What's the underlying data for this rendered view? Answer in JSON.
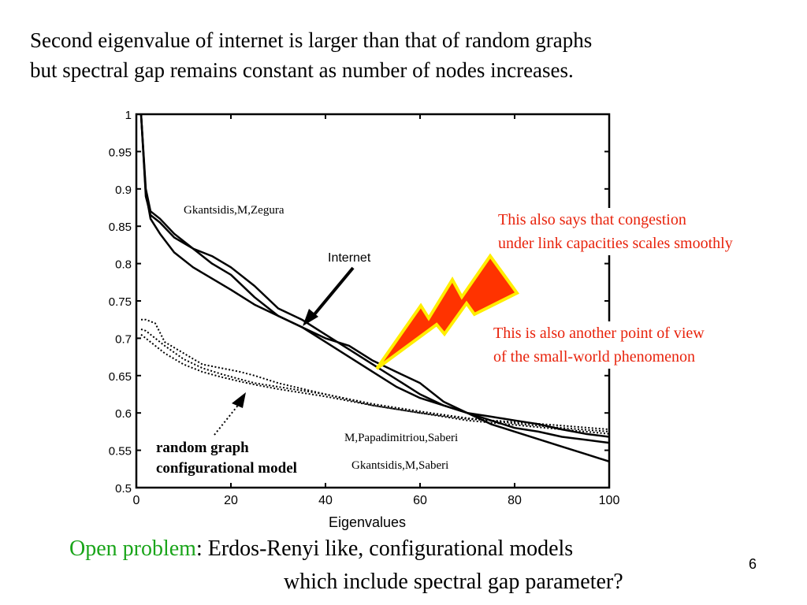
{
  "slide": {
    "title_line1": "Second eigenvalue of internet is larger than that of random graphs",
    "title_line2": "but spectral gap remains constant as number of nodes increases.",
    "page_number": "6",
    "bottom": {
      "open_label": "Open problem",
      "rest_line1": ": Erdos-Renyi like, configurational models",
      "line2": "which include spectral gap parameter?"
    },
    "notes": {
      "congestion_line1": "This also says that congestion",
      "congestion_line2": "under link capacities scales smoothly",
      "smallworld_line1": "This is also another point of view",
      "smallworld_line2": "of the small-world phenomenon"
    },
    "colors": {
      "accent_red": "#e8230c",
      "open_problem_green": "#1aa51a",
      "bolt_fill": "#ff3300",
      "bolt_outline": "#ffee00"
    }
  },
  "chart_data": {
    "type": "line",
    "xlabel": "Eigenvalues",
    "ylabel": "",
    "xlim": [
      0,
      100
    ],
    "ylim": [
      0.5,
      1
    ],
    "xticks": [
      0,
      20,
      40,
      60,
      80,
      100
    ],
    "yticks": [
      0.5,
      0.55,
      0.6,
      0.65,
      0.7,
      0.75,
      0.8,
      0.85,
      0.9,
      0.95,
      1
    ],
    "ytick_labels": [
      "0.5",
      "0.55",
      "0.6",
      "0.65",
      "0.7",
      "0.75",
      "0.8",
      "0.85",
      "0.9",
      "0.95",
      "1"
    ],
    "grid": false,
    "annotations": {
      "gkz": "Gkantsidis,M,Zegura",
      "internet": "Internet",
      "mps": "M,Papadimitriou,Saberi",
      "gks": "Gkantsidis,M,Saberi",
      "random_line1": "random graph",
      "random_line2": "configurational model"
    },
    "series": [
      {
        "style": "solid",
        "x": [
          1,
          2,
          3,
          5,
          8,
          12,
          16,
          20,
          25,
          30,
          35,
          40,
          45,
          50,
          55,
          60,
          65,
          70,
          75,
          80,
          85,
          90,
          95,
          100
        ],
        "values": [
          1.0,
          0.9,
          0.87,
          0.86,
          0.84,
          0.82,
          0.81,
          0.795,
          0.77,
          0.74,
          0.725,
          0.705,
          0.685,
          0.665,
          0.645,
          0.625,
          0.61,
          0.6,
          0.59,
          0.58,
          0.575,
          0.568,
          0.564,
          0.56
        ]
      },
      {
        "style": "solid",
        "x": [
          1,
          2,
          3,
          5,
          8,
          12,
          16,
          20,
          25,
          30,
          35,
          40,
          45,
          50,
          55,
          60,
          65,
          70,
          75,
          80,
          85,
          90,
          95,
          100
        ],
        "values": [
          1.0,
          0.89,
          0.865,
          0.855,
          0.835,
          0.82,
          0.8,
          0.785,
          0.755,
          0.73,
          0.715,
          0.7,
          0.69,
          0.67,
          0.655,
          0.64,
          0.615,
          0.6,
          0.585,
          0.575,
          0.565,
          0.555,
          0.545,
          0.535
        ]
      },
      {
        "style": "solid",
        "x": [
          1,
          2,
          3,
          5,
          8,
          12,
          16,
          20,
          25,
          30,
          35,
          40,
          45,
          50,
          55,
          60,
          65,
          70,
          75,
          80,
          85,
          90,
          95,
          100
        ],
        "values": [
          1.0,
          0.895,
          0.86,
          0.84,
          0.815,
          0.795,
          0.78,
          0.765,
          0.745,
          0.73,
          0.715,
          0.695,
          0.675,
          0.655,
          0.635,
          0.62,
          0.61,
          0.6,
          0.595,
          0.59,
          0.585,
          0.578,
          0.572,
          0.568
        ]
      },
      {
        "style": "dotted",
        "x": [
          1,
          2,
          4,
          6,
          10,
          14,
          18,
          22,
          25,
          30,
          40,
          50,
          60,
          70,
          80,
          90,
          100
        ],
        "values": [
          0.725,
          0.725,
          0.72,
          0.695,
          0.68,
          0.665,
          0.66,
          0.655,
          0.65,
          0.64,
          0.625,
          0.61,
          0.6,
          0.592,
          0.588,
          0.583,
          0.578
        ]
      },
      {
        "style": "dotted",
        "x": [
          1,
          2,
          4,
          6,
          10,
          14,
          18,
          22,
          25,
          30,
          40,
          50,
          60,
          70,
          80,
          90,
          100
        ],
        "values": [
          0.705,
          0.7,
          0.69,
          0.68,
          0.665,
          0.655,
          0.648,
          0.642,
          0.638,
          0.632,
          0.622,
          0.61,
          0.6,
          0.59,
          0.584,
          0.578,
          0.572
        ]
      },
      {
        "style": "dotted",
        "x": [
          1,
          2,
          4,
          6,
          10,
          14,
          18,
          22,
          25,
          30,
          40,
          50,
          60,
          70,
          80,
          90,
          100
        ],
        "values": [
          0.712,
          0.71,
          0.7,
          0.69,
          0.672,
          0.66,
          0.652,
          0.645,
          0.64,
          0.635,
          0.625,
          0.612,
          0.602,
          0.593,
          0.586,
          0.58,
          0.575
        ]
      }
    ]
  }
}
